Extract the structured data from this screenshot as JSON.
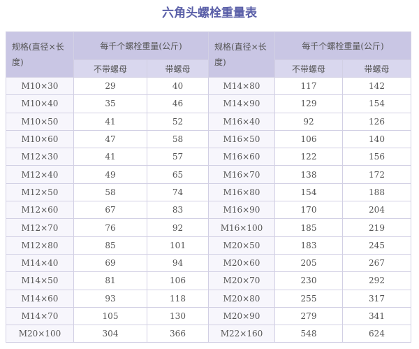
{
  "title": "六角头螺栓重量表",
  "table": {
    "header_groups": [
      {
        "spec": "规格(直径×长度)",
        "weight": "每千个螺栓重量(公斤)",
        "sub": [
          "不带螺母",
          "带螺母"
        ]
      },
      {
        "spec": "规格(直径×长度)",
        "weight": "每千个螺栓重量(公斤)",
        "sub": [
          "不带螺母",
          "带螺母"
        ]
      }
    ],
    "rows": [
      [
        "M10×30",
        29,
        40,
        "M14×80",
        117,
        142
      ],
      [
        "M10×40",
        35,
        46,
        "M14×90",
        129,
        154
      ],
      [
        "M10×50",
        41,
        52,
        "M16×40",
        92,
        126
      ],
      [
        "M10×60",
        47,
        58,
        "M16×50",
        106,
        140
      ],
      [
        "M12×30",
        41,
        57,
        "M16×60",
        122,
        156
      ],
      [
        "M12×40",
        49,
        65,
        "M16×70",
        138,
        172
      ],
      [
        "M12×50",
        58,
        74,
        "M16×80",
        154,
        188
      ],
      [
        "M12×60",
        67,
        83,
        "M16×90",
        170,
        204
      ],
      [
        "M12×70",
        76,
        92,
        "M16×100",
        185,
        219
      ],
      [
        "M12×80",
        85,
        101,
        "M20×50",
        183,
        245
      ],
      [
        "M14×40",
        69,
        94,
        "M20×60",
        205,
        267
      ],
      [
        "M14×50",
        81,
        106,
        "M20×70",
        230,
        292
      ],
      [
        "M14×60",
        93,
        118,
        "M20×80",
        255,
        317
      ],
      [
        "M14×70",
        105,
        130,
        "M20×90",
        279,
        341
      ],
      [
        "M20×100",
        304,
        366,
        "M22×160",
        548,
        624
      ]
    ]
  }
}
